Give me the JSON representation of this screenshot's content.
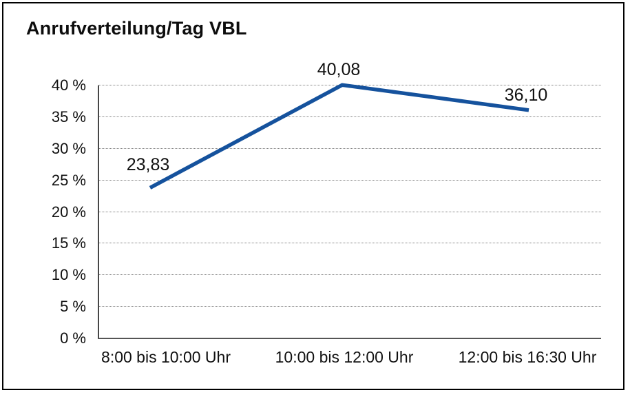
{
  "chart_data": {
    "type": "line",
    "title": "Anrufverteilung/Tag VBL",
    "categories": [
      "8:00 bis 10:00 Uhr",
      "10:00 bis 12:00 Uhr",
      "12:00 bis 16:30 Uhr"
    ],
    "values": [
      23.83,
      40.08,
      36.1
    ],
    "value_labels": [
      "23,83",
      "40,08",
      "36,10"
    ],
    "y_tick_labels": [
      "0 %",
      "5 %",
      "10 %",
      "15 %",
      "20 %",
      "25 %",
      "30 %",
      "35 %",
      "40 %"
    ],
    "ylim": [
      0,
      40
    ],
    "y_tick_step": 5,
    "xlabel": "",
    "ylabel": "",
    "grid": "horizontal-dotted",
    "legend": "none",
    "colors": {
      "line": "#15529D",
      "axis": "#474747",
      "grid_dots": "#808080",
      "text": "#111111",
      "background": "#ffffff",
      "border": "#000000"
    }
  }
}
